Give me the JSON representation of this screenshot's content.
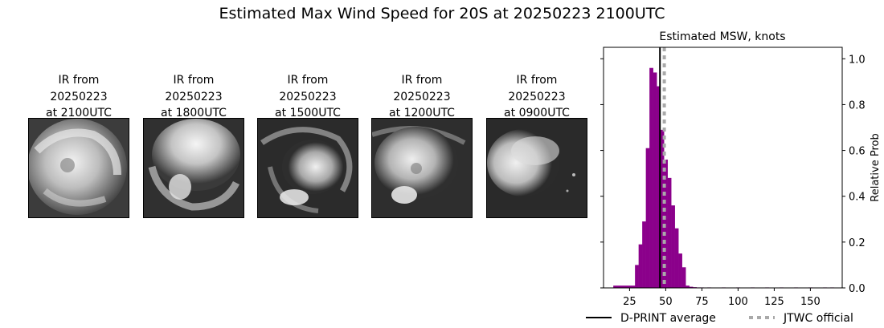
{
  "figure": {
    "title": "Estimated Max Wind Speed for 20S at 20250223 2100UTC"
  },
  "ir_panels": [
    {
      "caption": "IR from\n20250223\nat 2100UTC"
    },
    {
      "caption": "IR from\n20250223\nat 1800UTC"
    },
    {
      "caption": "IR from\n20250223\nat 1500UTC"
    },
    {
      "caption": "IR from\n20250223\nat 1200UTC"
    },
    {
      "caption": "IR from\n20250223\nat 0900UTC"
    }
  ],
  "chart_data": {
    "type": "bar",
    "title": "Estimated MSW, knots",
    "xlabel": "",
    "ylabel": "Relative Prob",
    "xlim": [
      7,
      172
    ],
    "ylim": [
      0,
      1.05
    ],
    "xticks": [
      25,
      50,
      75,
      100,
      125,
      150
    ],
    "yticks": [
      0.0,
      0.2,
      0.4,
      0.6,
      0.8,
      1.0
    ],
    "bin_width": 2.5,
    "bar_color": "#8b008b",
    "bins": [
      {
        "x": 15,
        "y": 0.01
      },
      {
        "x": 17.5,
        "y": 0.01
      },
      {
        "x": 20,
        "y": 0.01
      },
      {
        "x": 22.5,
        "y": 0.01
      },
      {
        "x": 25,
        "y": 0.01
      },
      {
        "x": 27.5,
        "y": 0.01
      },
      {
        "x": 30,
        "y": 0.1
      },
      {
        "x": 32.5,
        "y": 0.19
      },
      {
        "x": 35,
        "y": 0.29
      },
      {
        "x": 37.5,
        "y": 0.61
      },
      {
        "x": 40,
        "y": 0.96
      },
      {
        "x": 42.5,
        "y": 0.94
      },
      {
        "x": 45,
        "y": 0.88
      },
      {
        "x": 47.5,
        "y": 0.69
      },
      {
        "x": 50,
        "y": 0.56
      },
      {
        "x": 52.5,
        "y": 0.48
      },
      {
        "x": 55,
        "y": 0.36
      },
      {
        "x": 57.5,
        "y": 0.26
      },
      {
        "x": 60,
        "y": 0.15
      },
      {
        "x": 62.5,
        "y": 0.09
      },
      {
        "x": 65,
        "y": 0.01
      },
      {
        "x": 67.5,
        "y": 0.005
      },
      {
        "x": 70,
        "y": 0.003
      },
      {
        "x": 72.5,
        "y": 0.002
      },
      {
        "x": 75,
        "y": 0.002
      },
      {
        "x": 80,
        "y": 0.002
      },
      {
        "x": 90,
        "y": 0.002
      },
      {
        "x": 100,
        "y": 0.002
      },
      {
        "x": 110,
        "y": 0.002
      },
      {
        "x": 120,
        "y": 0.002
      },
      {
        "x": 130,
        "y": 0.002
      },
      {
        "x": 140,
        "y": 0.002
      },
      {
        "x": 150,
        "y": 0.002
      },
      {
        "x": 160,
        "y": 0.002
      },
      {
        "x": 165,
        "y": 0.002
      }
    ],
    "dprint_average": 46,
    "jtwc_official": 49,
    "legend": [
      {
        "label": "D-PRINT average",
        "style": "solid",
        "color": "#000000"
      },
      {
        "label": "JTWC official",
        "style": "dotted",
        "color": "#a9a9a9"
      }
    ],
    "legend_position": "bottom"
  }
}
